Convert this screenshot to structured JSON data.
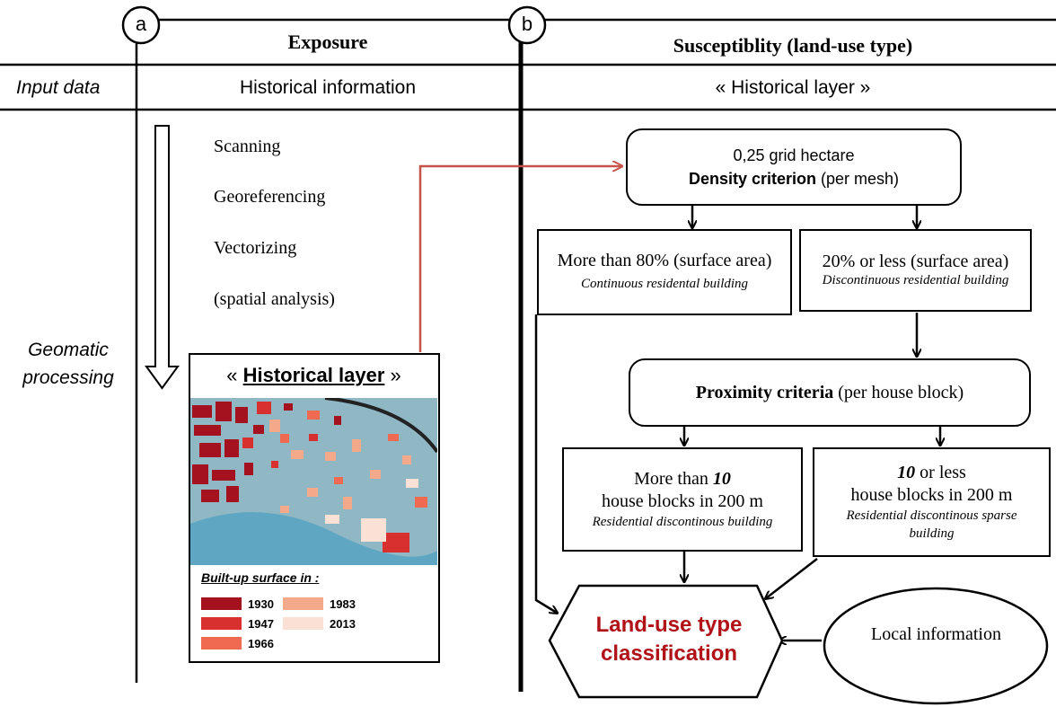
{
  "panel_a": {
    "marker": "a",
    "header": "Exposure",
    "input_data": "Historical information",
    "steps": [
      "Scanning",
      "Georeferencing",
      "Vectorizing",
      "(spatial analysis)"
    ],
    "layer_box": {
      "prefix": "«",
      "title": "Historical layer",
      "suffix": "»",
      "legend_title": "Built-up surface in :",
      "legend": [
        {
          "year": "1930",
          "color": "#a3121e"
        },
        {
          "year": "1947",
          "color": "#d8302f"
        },
        {
          "year": "1966",
          "color": "#ef6a50"
        },
        {
          "year": "1983",
          "color": "#f4a98b"
        },
        {
          "year": "2013",
          "color": "#fbe0d5"
        }
      ]
    }
  },
  "panel_b": {
    "marker": "b",
    "header": "Susceptiblity (land-use type)",
    "input_data": "« Historical layer »",
    "density": {
      "line1": "0,25 grid hectare",
      "bold": "Density criterion",
      "rest": " (per mesh)"
    },
    "more80": {
      "line": "More than 80% (surface area)",
      "italic": "Continuous residental building"
    },
    "less20": {
      "line": "20% or less (surface area)",
      "italic": "Discontinuous residential building"
    },
    "proximity": {
      "bold": "Proximity criteria",
      "rest": " (per house block)"
    },
    "more10": {
      "pre": "More than ",
      "num": "10",
      "line2": "house blocks in 200 m",
      "italic": "Residential discontinous building"
    },
    "less10": {
      "num": "10",
      "post": " or less",
      "line2": "house blocks in 200 m",
      "italic": "Residential discontinous sparse building"
    },
    "classification": {
      "text": "Land-use type classification",
      "color": "#b01218"
    },
    "local": "Local information"
  },
  "rows": {
    "input_label": "Input data",
    "processing_label": "Geomatic processing"
  },
  "colors": {
    "link_arrow": "#c8534b"
  }
}
